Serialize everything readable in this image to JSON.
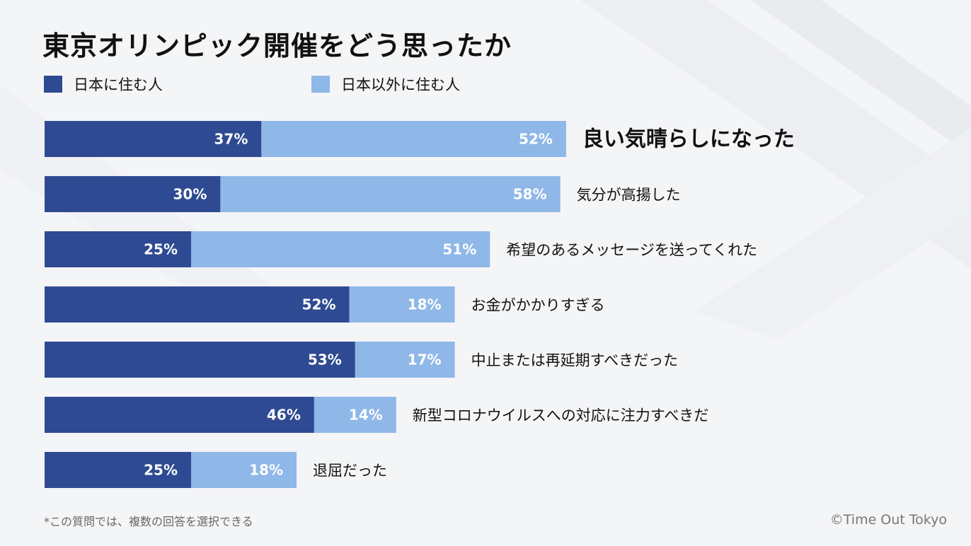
{
  "title": "東京オリンピック開催をどう思ったか",
  "note": "*この質問では、複数の回答を選択できる",
  "credit": "©Time Out Tokyo",
  "colors": {
    "series_japan": "#2e4a92",
    "series_abroad": "#8fb7e8",
    "text": "#111111",
    "bar_label": "#ffffff"
  },
  "chart_data": {
    "type": "bar",
    "orientation": "horizontal",
    "stacked": true,
    "categories": [
      "良い気晴らしになった",
      "気分が高揚した",
      "希望のあるメッセージを送ってくれた",
      "お金がかかりすぎる",
      "中止または再延期すべきだった",
      "新型コロナウイルスへの対応に注力すべきだ",
      "退屈だった"
    ],
    "series": [
      {
        "name": "日本に住む人",
        "values": [
          37,
          30,
          25,
          52,
          53,
          46,
          25
        ],
        "labels": [
          "37%",
          "30%",
          "25%",
          "52%",
          "53%",
          "46%",
          "25%"
        ]
      },
      {
        "name": "日本以外に住む人",
        "values": [
          52,
          58,
          51,
          18,
          17,
          14,
          18
        ],
        "labels": [
          "52%",
          "58%",
          "51%",
          "18%",
          "17%",
          "14%",
          "18%"
        ]
      }
    ],
    "unit": "%",
    "highlighted_category": 0,
    "legend_position": "top-left",
    "grid": false
  }
}
